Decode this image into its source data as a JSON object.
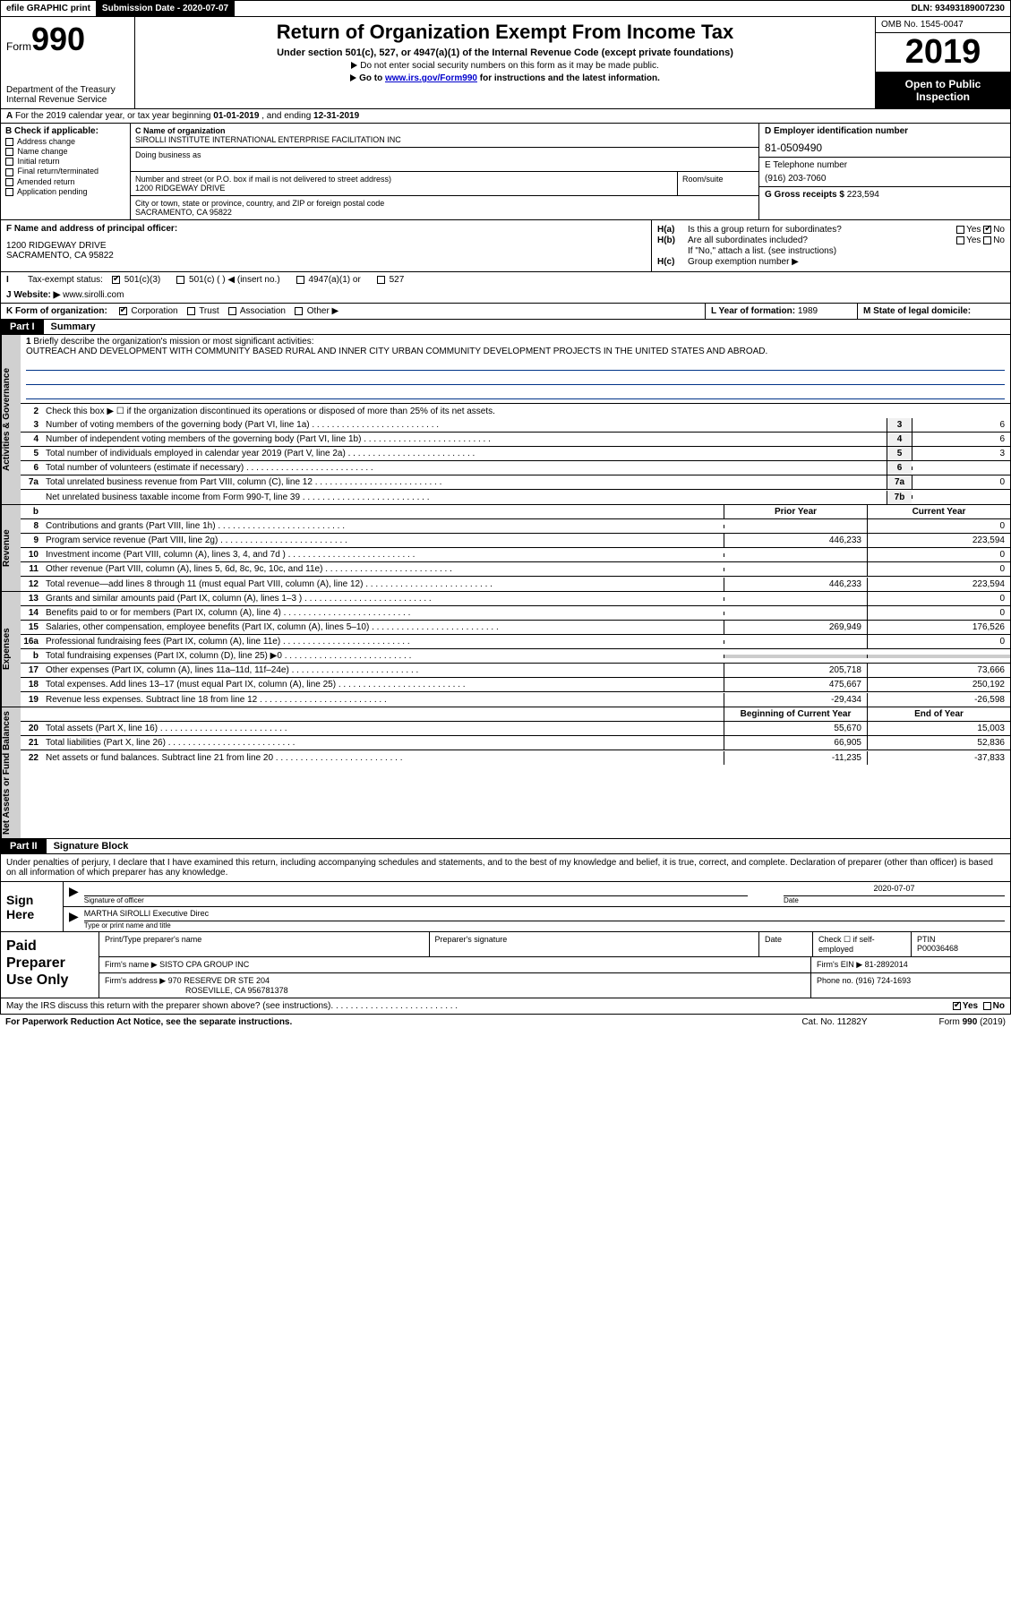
{
  "colors": {
    "black": "#000000",
    "white": "#ffffff",
    "link": "#0000cc",
    "shade": "#d0d0d0",
    "ruleblue": "#003388"
  },
  "topbar": {
    "efile_prefix": "efile ",
    "efile_graphic": "GRAPHIC",
    "efile_print": " print",
    "submission_label": "Submission Date - ",
    "submission_date": "2020-07-07",
    "dln_label": "DLN: ",
    "dln": "93493189007230"
  },
  "header": {
    "form_label": "Form",
    "form_num": "990",
    "dept": "Department of the Treasury\nInternal Revenue Service",
    "title": "Return of Organization Exempt From Income Tax",
    "sub1": "Under section 501(c), 527, or 4947(a)(1) of the Internal Revenue Code (except private foundations)",
    "sub2a": "Do not enter social security numbers on this form as it may be made public.",
    "sub2b_pre": "Go to ",
    "sub2b_link": "www.irs.gov/Form990",
    "sub2b_post": " for instructions and the latest information.",
    "omb": "OMB No. 1545-0047",
    "year": "2019",
    "otp": "Open to Public Inspection"
  },
  "rowA": {
    "prefix": "A",
    "text_pre": "For the 2019 calendar year, or tax year beginning ",
    "begin": "01-01-2019",
    "mid": "  , and ending ",
    "end": "12-31-2019"
  },
  "B": {
    "label": "B Check if applicable:",
    "opts": [
      "Address change",
      "Name change",
      "Initial return",
      "Final return/terminated",
      "Amended return",
      "Application pending"
    ]
  },
  "C": {
    "name_label": "C Name of organization",
    "name": "SIROLLI INSTITUTE INTERNATIONAL ENTERPRISE FACILITATION INC",
    "dba_label": "Doing business as",
    "dba": "",
    "addr_label": "Number and street (or P.O. box if mail is not delivered to street address)",
    "addr": "1200 RIDGEWAY DRIVE",
    "room_label": "Room/suite",
    "room": "",
    "city_label": "City or town, state or province, country, and ZIP or foreign postal code",
    "city": "SACRAMENTO, CA  95822"
  },
  "D": {
    "label": "D Employer identification number",
    "val": "81-0509490"
  },
  "E": {
    "label": "E Telephone number",
    "val": "(916) 203-7060"
  },
  "G": {
    "label": "G Gross receipts $ ",
    "val": "223,594"
  },
  "F": {
    "label": "F  Name and address of principal officer:",
    "val": "1200 RIDGEWAY DRIVE\nSACRAMENTO, CA  95822"
  },
  "H": {
    "a_label": "H(a)",
    "a_text": "Is this a group return for subordinates?",
    "a_no_checked": true,
    "b_label": "H(b)",
    "b_text": "Are all subordinates included?",
    "b_note": "If \"No,\" attach a list. (see instructions)",
    "c_label": "H(c)",
    "c_text": "Group exemption number ▶",
    "yes": "Yes",
    "no": "No"
  },
  "I": {
    "label": "Tax-exempt status:",
    "opts": [
      "501(c)(3)",
      "501(c) (  ) ◀ (insert no.)",
      "4947(a)(1) or",
      "527"
    ],
    "checked_idx": 0
  },
  "J": {
    "label": "J",
    "text": "Website: ▶",
    "val": "www.sirolli.com"
  },
  "K": {
    "label": "K Form of organization:",
    "opts": [
      "Corporation",
      "Trust",
      "Association",
      "Other ▶"
    ],
    "checked_idx": 0
  },
  "L": {
    "label": "L Year of formation: ",
    "val": "1989"
  },
  "M": {
    "label": "M State of legal domicile:",
    "val": ""
  },
  "partI": {
    "title": "Part I",
    "name": "Summary"
  },
  "p1": {
    "q1_label": "1",
    "q1_text": "Briefly describe the organization's mission or most significant activities:",
    "mission": "OUTREACH AND DEVELOPMENT WITH COMMUNITY BASED RURAL AND INNER CITY URBAN COMMUNITY DEVELOPMENT PROJECTS IN THE UNITED STATES AND ABROAD.",
    "q2_label": "2",
    "q2_text": "Check this box ▶ ☐ if the organization discontinued its operations or disposed of more than 25% of its net assets.",
    "rows_ag": [
      {
        "n": "3",
        "t": "Number of voting members of the governing body (Part VI, line 1a)",
        "box": "3",
        "v": "6"
      },
      {
        "n": "4",
        "t": "Number of independent voting members of the governing body (Part VI, line 1b)",
        "box": "4",
        "v": "6"
      },
      {
        "n": "5",
        "t": "Total number of individuals employed in calendar year 2019 (Part V, line 2a)",
        "box": "5",
        "v": "3"
      },
      {
        "n": "6",
        "t": "Total number of volunteers (estimate if necessary)",
        "box": "6",
        "v": ""
      },
      {
        "n": "7a",
        "t": "Total unrelated business revenue from Part VIII, column (C), line 12",
        "box": "7a",
        "v": "0"
      },
      {
        "n": "",
        "t": "Net unrelated business taxable income from Form 990-T, line 39",
        "box": "7b",
        "v": ""
      }
    ],
    "b_row": "b",
    "prior_hdr": "Prior Year",
    "curr_hdr": "Current Year",
    "rows_rev": [
      {
        "n": "8",
        "t": "Contributions and grants (Part VIII, line 1h)",
        "p": "",
        "c": "0"
      },
      {
        "n": "9",
        "t": "Program service revenue (Part VIII, line 2g)",
        "p": "446,233",
        "c": "223,594"
      },
      {
        "n": "10",
        "t": "Investment income (Part VIII, column (A), lines 3, 4, and 7d )",
        "p": "",
        "c": "0"
      },
      {
        "n": "11",
        "t": "Other revenue (Part VIII, column (A), lines 5, 6d, 8c, 9c, 10c, and 11e)",
        "p": "",
        "c": "0"
      },
      {
        "n": "12",
        "t": "Total revenue—add lines 8 through 11 (must equal Part VIII, column (A), line 12)",
        "p": "446,233",
        "c": "223,594"
      }
    ],
    "rows_exp": [
      {
        "n": "13",
        "t": "Grants and similar amounts paid (Part IX, column (A), lines 1–3 )",
        "p": "",
        "c": "0"
      },
      {
        "n": "14",
        "t": "Benefits paid to or for members (Part IX, column (A), line 4)",
        "p": "",
        "c": "0"
      },
      {
        "n": "15",
        "t": "Salaries, other compensation, employee benefits (Part IX, column (A), lines 5–10)",
        "p": "269,949",
        "c": "176,526"
      },
      {
        "n": "16a",
        "t": "Professional fundraising fees (Part IX, column (A), line 11e)",
        "p": "",
        "c": "0"
      },
      {
        "n": "b",
        "t": "Total fundraising expenses (Part IX, column (D), line 25) ▶0",
        "p": "__shade__",
        "c": "__shade__"
      },
      {
        "n": "17",
        "t": "Other expenses (Part IX, column (A), lines 11a–11d, 11f–24e)",
        "p": "205,718",
        "c": "73,666"
      },
      {
        "n": "18",
        "t": "Total expenses. Add lines 13–17 (must equal Part IX, column (A), line 25)",
        "p": "475,667",
        "c": "250,192"
      },
      {
        "n": "19",
        "t": "Revenue less expenses. Subtract line 18 from line 12",
        "p": "-29,434",
        "c": "-26,598"
      }
    ],
    "begin_hdr": "Beginning of Current Year",
    "end_hdr": "End of Year",
    "rows_na": [
      {
        "n": "20",
        "t": "Total assets (Part X, line 16)",
        "p": "55,670",
        "c": "15,003"
      },
      {
        "n": "21",
        "t": "Total liabilities (Part X, line 26)",
        "p": "66,905",
        "c": "52,836"
      },
      {
        "n": "22",
        "t": "Net assets or fund balances. Subtract line 21 from line 20",
        "p": "-11,235",
        "c": "-37,833"
      }
    ],
    "side_ag": "Activities & Governance",
    "side_rev": "Revenue",
    "side_exp": "Expenses",
    "side_na": "Net Assets or Fund Balances"
  },
  "partII": {
    "title": "Part II",
    "name": "Signature Block"
  },
  "p2": {
    "decl": "Under penalties of perjury, I declare that I have examined this return, including accompanying schedules and statements, and to the best of my knowledge and belief, it is true, correct, and complete. Declaration of preparer (other than officer) is based on all information of which preparer has any knowledge."
  },
  "sign": {
    "side": "Sign Here",
    "sig_label": "Signature of officer",
    "date_label": "Date",
    "date": "2020-07-07",
    "name": "MARTHA SIROLLI Executive Direc",
    "name_label": "Type or print name and title"
  },
  "paid": {
    "side": "Paid Preparer Use Only",
    "h1": "Print/Type preparer's name",
    "h2": "Preparer's signature",
    "h3": "Date",
    "h4_pre": "Check ☐ if self-employed",
    "h5": "PTIN",
    "ptin": "P00036468",
    "firm_name_lbl": "Firm's name   ▶",
    "firm_name": "SISTO CPA GROUP INC",
    "firm_ein_lbl": "Firm's EIN ▶",
    "firm_ein": "81-2892014",
    "firm_addr_lbl": "Firm's address ▶",
    "firm_addr1": "970 RESERVE DR STE 204",
    "firm_addr2": "ROSEVILLE, CA  956781378",
    "phone_lbl": "Phone no. ",
    "phone": "(916) 724-1693"
  },
  "may_discuss": {
    "text": "May the IRS discuss this return with the preparer shown above? (see instructions)",
    "yes_checked": true
  },
  "footer": {
    "left": "For Paperwork Reduction Act Notice, see the separate instructions.",
    "mid": "Cat. No. 11282Y",
    "right": "Form 990 (2019)"
  }
}
